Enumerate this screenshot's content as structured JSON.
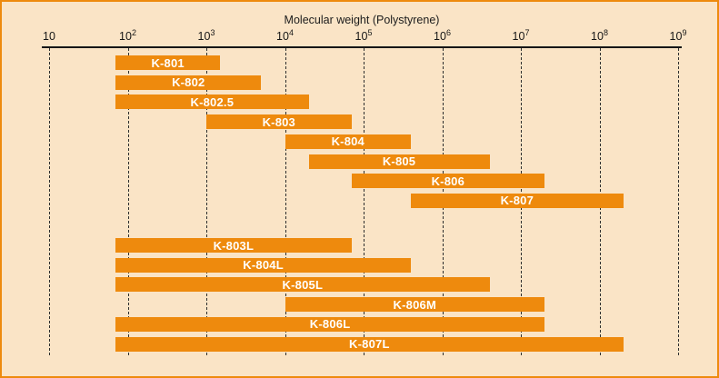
{
  "page": {
    "background_color": "#fae4c6",
    "border_color": "#ee8a0d"
  },
  "chart_data": {
    "type": "bar",
    "subtype": "horizontal-range-bars",
    "title": "Molecular weight (Polystyrene)",
    "xscale": "log",
    "xlim": [
      10,
      1000000000
    ],
    "grid": "dashed-vertical-per-decade",
    "legend": "none",
    "bar_color": "#ee8a0d",
    "bar_label_color": "#ffffff",
    "x_ticks": [
      {
        "base": "10",
        "exp": "",
        "value": 10
      },
      {
        "base": "10",
        "exp": "2",
        "value": 100
      },
      {
        "base": "10",
        "exp": "3",
        "value": 1000
      },
      {
        "base": "10",
        "exp": "4",
        "value": 10000
      },
      {
        "base": "10",
        "exp": "5",
        "value": 100000
      },
      {
        "base": "10",
        "exp": "6",
        "value": 1000000
      },
      {
        "base": "10",
        "exp": "7",
        "value": 10000000
      },
      {
        "base": "10",
        "exp": "8",
        "value": 100000000
      },
      {
        "base": "10",
        "exp": "9",
        "value": 1000000000
      }
    ],
    "series": [
      {
        "name": "K-801",
        "group": 1,
        "range_min": 70,
        "range_max": 1500
      },
      {
        "name": "K-802",
        "group": 1,
        "range_min": 70,
        "range_max": 5000
      },
      {
        "name": "K-802.5",
        "group": 1,
        "range_min": 70,
        "range_max": 20000
      },
      {
        "name": "K-803",
        "group": 1,
        "range_min": 1000,
        "range_max": 70000
      },
      {
        "name": "K-804",
        "group": 1,
        "range_min": 10000,
        "range_max": 400000
      },
      {
        "name": "K-805",
        "group": 1,
        "range_min": 20000,
        "range_max": 4000000
      },
      {
        "name": "K-806",
        "group": 1,
        "range_min": 70000,
        "range_max": 20000000
      },
      {
        "name": "K-807",
        "group": 1,
        "range_min": 400000,
        "range_max": 200000000
      },
      {
        "name": "K-803L",
        "group": 2,
        "range_min": 70,
        "range_max": 70000
      },
      {
        "name": "K-804L",
        "group": 2,
        "range_min": 70,
        "range_max": 400000
      },
      {
        "name": "K-805L",
        "group": 2,
        "range_min": 70,
        "range_max": 4000000
      },
      {
        "name": "K-806M",
        "group": 2,
        "range_min": 10000,
        "range_max": 20000000
      },
      {
        "name": "K-806L",
        "group": 2,
        "range_min": 70,
        "range_max": 20000000
      },
      {
        "name": "K-807L",
        "group": 2,
        "range_min": 70,
        "range_max": 200000000
      }
    ]
  }
}
